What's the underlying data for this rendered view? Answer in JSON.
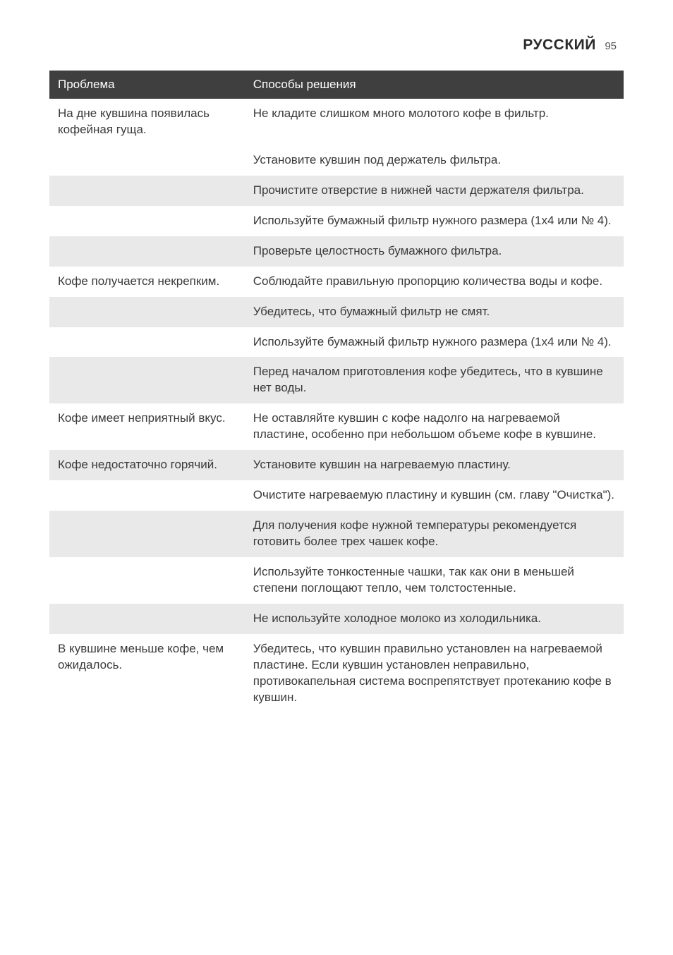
{
  "header": {
    "language": "РУССКИЙ",
    "page_number": "95"
  },
  "table": {
    "columns": [
      "Проблема",
      "Способы решения"
    ],
    "col_widths_pct": [
      34,
      66
    ],
    "header_bg": "#3f3f3f",
    "header_color": "#ffffff",
    "shade_bg": "#e9e9e9",
    "text_color": "#3a3a3a",
    "font_size_pt": 13,
    "rows": [
      {
        "problem": "На дне кувшина появилась кофейная гуща.",
        "solution": "Не кладите слишком много молотого кофе в фильтр.",
        "shaded": false
      },
      {
        "problem": "",
        "solution": "Установите кувшин под держатель фильтра.",
        "shaded": false
      },
      {
        "problem": "",
        "solution": "Прочистите отверстие в нижней части держателя фильтра.",
        "shaded": true
      },
      {
        "problem": "",
        "solution": "Используйте бумажный фильтр нужного размера (1x4 или № 4).",
        "shaded": false
      },
      {
        "problem": "",
        "solution": "Проверьте целостность бумажного фильтра.",
        "shaded": true
      },
      {
        "problem": "Кофе получается некрепким.",
        "solution": "Соблюдайте правильную пропорцию количества воды и кофе.",
        "shaded": false
      },
      {
        "problem": "",
        "solution": "Убедитесь, что бумажный фильтр не смят.",
        "shaded": true
      },
      {
        "problem": "",
        "solution": "Используйте бумажный фильтр нужного размера (1x4 или № 4).",
        "shaded": false
      },
      {
        "problem": "",
        "solution": "Перед началом приготовления кофе убедитесь, что в кувшине нет воды.",
        "shaded": true
      },
      {
        "problem": "Кофе имеет неприятный вкус.",
        "solution": "Не оставляйте кувшин с кофе надолго на нагреваемой пластине, особенно при небольшом объеме кофе в кувшине.",
        "shaded": false
      },
      {
        "problem": "Кофе недостаточно горячий.",
        "solution": "Установите кувшин на нагреваемую пластину.",
        "shaded": true
      },
      {
        "problem": "",
        "solution": "Очистите нагреваемую пластину и кувшин (см. главу \"Очистка\").",
        "shaded": false
      },
      {
        "problem": "",
        "solution": "Для получения кофе нужной температуры рекомендуется готовить более трех чашек кофе.",
        "shaded": true
      },
      {
        "problem": "",
        "solution": "Используйте тонкостенные чашки, так как они в меньшей степени поглощают тепло, чем толстостенные.",
        "shaded": false
      },
      {
        "problem": "",
        "solution": "Не используйте холодное молоко из холодильника.",
        "shaded": true
      },
      {
        "problem": "В кувшине меньше кофе, чем ожидалось.",
        "solution": "Убедитесь, что кувшин правильно установлен на нагреваемой пластине. Если кувшин установлен неправильно, противокапельная система воспрепятствует протеканию кофе в кувшин.",
        "shaded": false
      }
    ]
  }
}
